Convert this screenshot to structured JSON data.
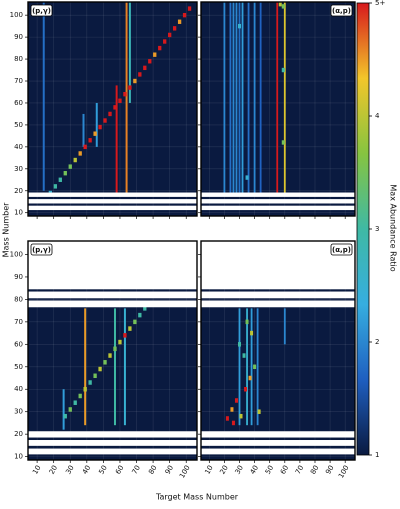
{
  "chart_data": {
    "type": "heatmap",
    "xlabel": "Target Mass Number",
    "ylabel": "Mass Number",
    "xlim": [
      4.5,
      106.5
    ],
    "ylim": [
      8.5,
      106
    ],
    "xticks": [
      10,
      20,
      30,
      40,
      50,
      60,
      70,
      80,
      90,
      100
    ],
    "yticks": [
      10,
      20,
      30,
      40,
      50,
      60,
      70,
      80,
      90,
      100
    ],
    "grid": true,
    "colorbar": {
      "label": "Max Abundance Ratio",
      "clim": [
        1,
        5
      ],
      "ticks": [
        1,
        2,
        3,
        4,
        {
          "value": 5,
          "label": "5+"
        }
      ],
      "colorscale": [
        "#0a1a40",
        "#1f5fc0",
        "#36aee0",
        "#3fb9a4",
        "#86c440",
        "#f2c62a",
        "#d7191c"
      ]
    },
    "panels": [
      {
        "label": "(p,γ)",
        "label_loc": "upper left",
        "x": [
          18,
          21,
          24,
          27,
          30,
          33,
          36,
          39,
          42,
          45,
          48,
          51,
          54,
          57,
          60,
          63,
          66,
          69,
          72,
          75,
          78,
          81,
          84,
          87,
          90,
          93,
          96,
          99,
          102
        ],
        "y": [
          19,
          22,
          25,
          28,
          31,
          34,
          37,
          40,
          43,
          46,
          49,
          52,
          55,
          58,
          61,
          64,
          67,
          70,
          73,
          76,
          79,
          82,
          85,
          88,
          91,
          94,
          97,
          100,
          103
        ],
        "values": [
          2.5,
          3,
          3,
          3.5,
          3.5,
          4,
          4.5,
          5,
          5,
          4.5,
          5,
          5,
          5,
          5,
          5,
          5,
          5,
          4.5,
          5,
          5,
          5,
          4.5,
          5,
          5,
          5,
          5,
          4.5,
          5,
          5
        ],
        "streak_x": [
          58,
          64,
          66,
          46,
          38,
          14
        ],
        "streak_y0": [
          19,
          19,
          60,
          40,
          40,
          20
        ],
        "streak_y1": [
          68,
          106,
          106,
          60,
          55,
          106
        ],
        "streak_values": [
          5,
          4.6,
          2.8,
          2.2,
          2,
          1.8
        ],
        "gap_y0": [
          11.2,
          14.2,
          17.2
        ],
        "gap_y1": [
          13.2,
          16.2,
          19.2
        ]
      },
      {
        "label": "(α,p)",
        "label_loc": "upper right",
        "x": [
          57,
          59,
          59,
          59,
          30,
          35
        ],
        "y": [
          105,
          104,
          75,
          42,
          95,
          26
        ],
        "values": [
          4,
          3.5,
          3,
          3.5,
          2.5,
          2.5
        ],
        "streak_x": [
          55,
          60,
          20,
          24,
          28,
          32,
          36,
          40,
          44,
          26,
          30
        ],
        "streak_y0": [
          19,
          19,
          19,
          19,
          19,
          19,
          19,
          19,
          19,
          19,
          19
        ],
        "streak_y1": [
          106,
          106,
          106,
          106,
          106,
          106,
          106,
          106,
          106,
          106,
          106
        ],
        "streak_values": [
          5,
          4.2,
          2,
          1.8,
          2,
          2.2,
          1.8,
          2,
          1.7,
          2,
          1.8
        ],
        "gap_y0": [
          11.2,
          14.2,
          17.2
        ],
        "gap_y1": [
          13.2,
          16.2,
          19.2
        ]
      },
      {
        "label": "(p,γ)",
        "label_loc": "upper left",
        "x": [
          27,
          30,
          33,
          36,
          39,
          42,
          45,
          48,
          51,
          54,
          57,
          60,
          63,
          66,
          69,
          72,
          75
        ],
        "y": [
          28,
          31,
          34,
          37,
          40,
          43,
          46,
          49,
          52,
          55,
          58,
          61,
          64,
          67,
          70,
          73,
          76
        ],
        "values": [
          3,
          3.5,
          3,
          3.5,
          4,
          3,
          3.5,
          4,
          3.5,
          4,
          3.5,
          4,
          5,
          4,
          3.5,
          3,
          3
        ],
        "streak_x": [
          39,
          57,
          63,
          26
        ],
        "streak_y0": [
          24,
          24,
          24,
          22
        ],
        "streak_y1": [
          76,
          76,
          76,
          40
        ],
        "streak_values": [
          4.5,
          3,
          2.5,
          2.2
        ],
        "gap_y0": [
          11,
          14.8,
          18.5,
          76.5,
          80.5,
          84.5
        ],
        "gap_y1": [
          13.6,
          17.4,
          21.3,
          79.5,
          83.5,
          106
        ]
      },
      {
        "label": "(α,p)",
        "label_loc": "upper right",
        "x": [
          22,
          25,
          28,
          31,
          34,
          37,
          40,
          43,
          30,
          35,
          38,
          26,
          33
        ],
        "y": [
          27,
          31,
          35,
          28,
          40,
          45,
          50,
          30,
          60,
          70,
          65,
          25,
          55
        ],
        "values": [
          5,
          4.5,
          5,
          4,
          5,
          4.5,
          3.5,
          4,
          3,
          3.5,
          4,
          5,
          3
        ],
        "streak_x": [
          30,
          35,
          38,
          42,
          60
        ],
        "streak_y0": [
          24,
          24,
          24,
          24,
          60
        ],
        "streak_y1": [
          76,
          76,
          76,
          76,
          76
        ],
        "streak_values": [
          2.2,
          2.5,
          2.2,
          2,
          2
        ],
        "gap_y0": [
          11,
          14.8,
          18.5,
          76.5,
          80.5,
          84.5
        ],
        "gap_y1": [
          13.6,
          17.4,
          21.3,
          79.5,
          83.5,
          106
        ]
      }
    ]
  }
}
